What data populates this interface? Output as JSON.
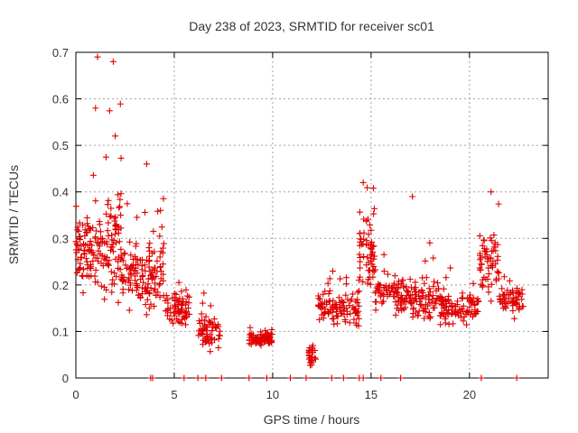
{
  "chart_data": {
    "type": "scatter",
    "title": "Day 238 of 2023, SRMTID for receiver sc01",
    "xlabel": "GPS time / hours",
    "ylabel": "SRMTID / TECUs",
    "xlim": [
      0,
      24
    ],
    "ylim": [
      0,
      0.7
    ],
    "xticks": [
      0,
      5,
      10,
      15,
      20
    ],
    "yticks": [
      0,
      0.1,
      0.2,
      0.3,
      0.4,
      0.5,
      0.6,
      0.7
    ],
    "grid": true,
    "marker": "+",
    "color": "#e00000",
    "series": [
      {
        "name": "SRMTID",
        "segments": [
          {
            "x0": 0.0,
            "x1": 1.3,
            "mean": 0.27,
            "spread": 0.1,
            "count": 90
          },
          {
            "x0": 1.2,
            "x1": 2.3,
            "mean": 0.3,
            "spread": 0.17,
            "count": 80
          },
          {
            "x0": 2.3,
            "x1": 3.5,
            "mean": 0.22,
            "spread": 0.09,
            "count": 70
          },
          {
            "x0": 3.5,
            "x1": 4.5,
            "mean": 0.22,
            "spread": 0.11,
            "count": 70
          },
          {
            "x0": 4.5,
            "x1": 5.8,
            "mean": 0.15,
            "spread": 0.06,
            "count": 70
          },
          {
            "x0": 6.2,
            "x1": 7.4,
            "mean": 0.1,
            "spread": 0.05,
            "count": 60
          },
          {
            "x0": 8.8,
            "x1": 10.0,
            "mean": 0.085,
            "spread": 0.02,
            "count": 90
          },
          {
            "x0": 11.8,
            "x1": 12.2,
            "mean": 0.05,
            "spread": 0.04,
            "count": 25
          },
          {
            "x0": 12.2,
            "x1": 14.4,
            "mean": 0.15,
            "spread": 0.05,
            "count": 110
          },
          {
            "x0": 14.4,
            "x1": 15.2,
            "mean": 0.27,
            "spread": 0.11,
            "count": 60
          },
          {
            "x0": 15.2,
            "x1": 16.5,
            "mean": 0.18,
            "spread": 0.06,
            "count": 60
          },
          {
            "x0": 16.5,
            "x1": 18.5,
            "mean": 0.17,
            "spread": 0.06,
            "count": 110
          },
          {
            "x0": 18.5,
            "x1": 20.5,
            "mean": 0.15,
            "spread": 0.05,
            "count": 100
          },
          {
            "x0": 20.5,
            "x1": 21.5,
            "mean": 0.25,
            "spread": 0.1,
            "count": 60
          },
          {
            "x0": 21.5,
            "x1": 22.8,
            "mean": 0.17,
            "spread": 0.05,
            "count": 60
          }
        ],
        "peaks": [
          {
            "x": 1.1,
            "y": 0.69
          },
          {
            "x": 1.9,
            "y": 0.68
          },
          {
            "x": 1.0,
            "y": 0.58
          },
          {
            "x": 2.0,
            "y": 0.52
          },
          {
            "x": 3.6,
            "y": 0.46
          },
          {
            "x": 14.6,
            "y": 0.42
          },
          {
            "x": 21.1,
            "y": 0.4
          },
          {
            "x": 17.1,
            "y": 0.39
          },
          {
            "x": 4.3,
            "y": 0.36
          }
        ],
        "zero_points": [
          3.8,
          3.9,
          5.5,
          6.2,
          6.6,
          7.4,
          8.8,
          9.7,
          10.9,
          11.7,
          13.0,
          13.6,
          14.4,
          14.6,
          15.5,
          16.5,
          20.6,
          22.4
        ]
      }
    ]
  }
}
